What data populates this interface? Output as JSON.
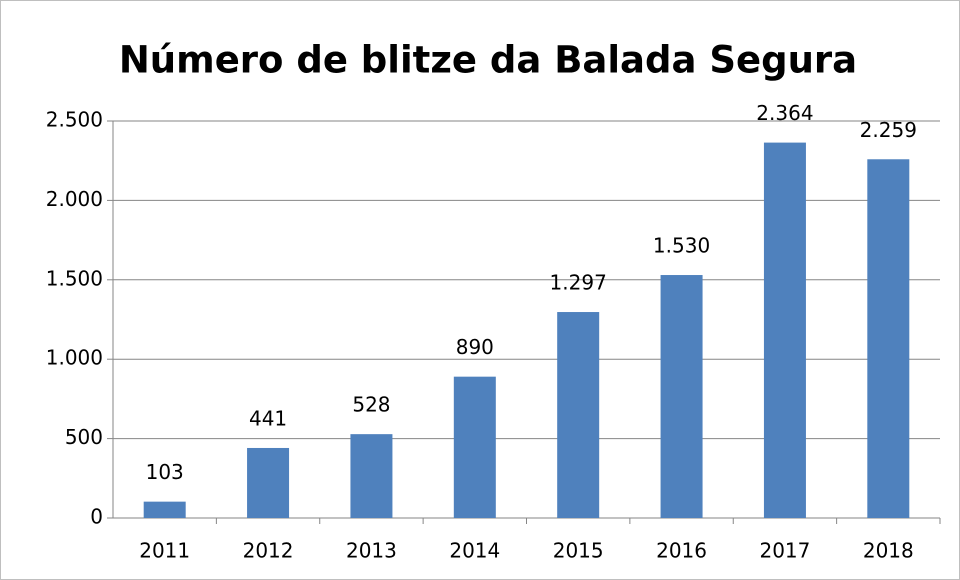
{
  "chart_data": {
    "type": "bar",
    "title": "Número de blitze da Balada Segura",
    "categories": [
      "2011",
      "2012",
      "2013",
      "2014",
      "2015",
      "2016",
      "2017",
      "2018"
    ],
    "values": [
      103,
      441,
      528,
      890,
      1297,
      1530,
      2364,
      2259
    ],
    "value_labels": [
      "103",
      "441",
      "528",
      "890",
      "1.297",
      "1.530",
      "2.364",
      "2.259"
    ],
    "color": "#4f81bd",
    "ylim": [
      0,
      2500
    ],
    "yticks": [
      0,
      500,
      {
        "value": 1000,
        "label": "1.000"
      },
      {
        "value": 1500,
        "label": "1.500"
      },
      {
        "value": 2000,
        "label": "2.000"
      },
      {
        "value": 2500,
        "label": "2.500"
      }
    ],
    "grid": true
  }
}
